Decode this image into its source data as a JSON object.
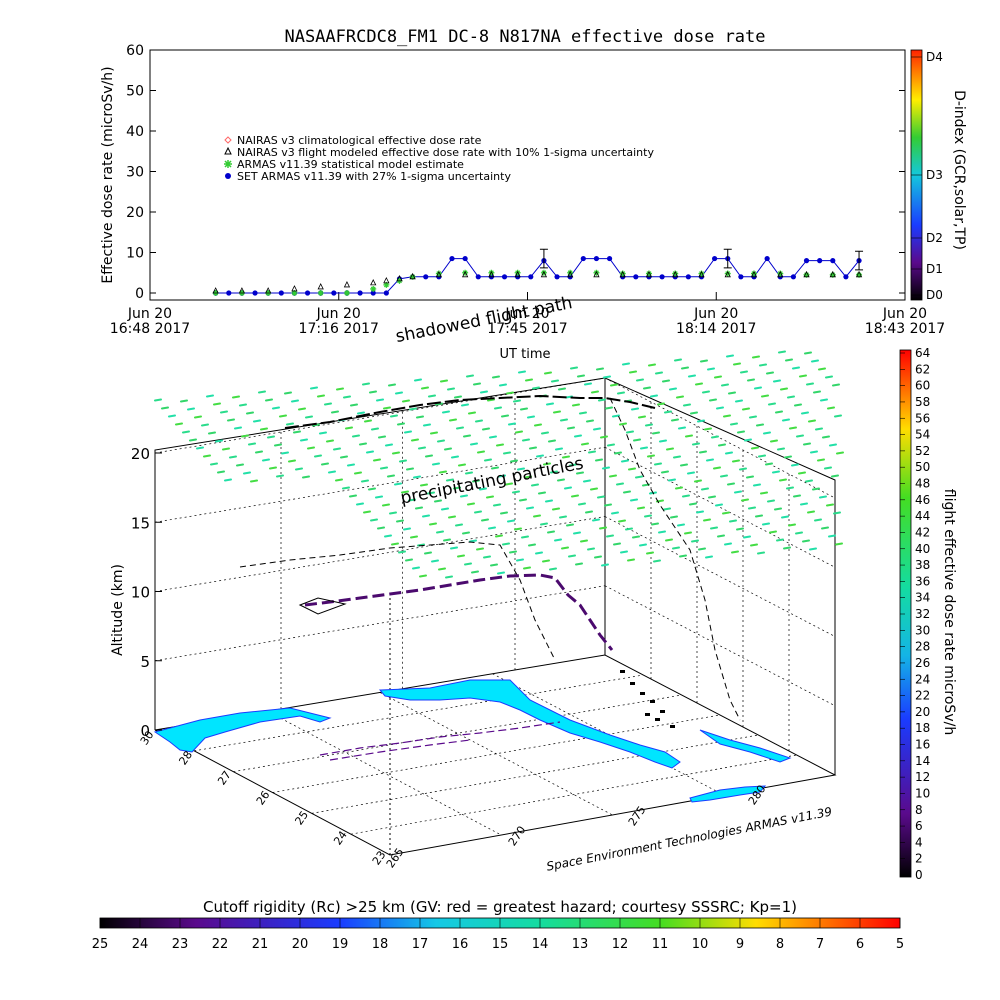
{
  "chart_data": [
    {
      "type": "line",
      "title": "NASAAFRCDC8_FM1 DC-8    N817NA effective dose rate",
      "xlabel": "UT time",
      "ylabel": "Effective dose rate (microSv/h)",
      "ylim": [
        0,
        60
      ],
      "yticks": [
        "0",
        "10",
        "20",
        "30",
        "40",
        "50",
        "60"
      ],
      "xticks": [
        {
          "l1": "Jun 20",
          "l2": "16:48 2017"
        },
        {
          "l1": "Jun 20",
          "l2": "17:16 2017"
        },
        {
          "l1": "Jun 20",
          "l2": "17:45 2017"
        },
        {
          "l1": "Jun 20",
          "l2": "18:14 2017"
        },
        {
          "l1": "Jun 20",
          "l2": "18:43 2017"
        }
      ],
      "x_range_minutes": [
        0,
        115
      ],
      "legend": [
        {
          "label": "NAIRAS v3 climatological effective dose rate",
          "color": "#ff6666"
        },
        {
          "label": "NAIRAS v3 flight modeled effective dose rate with 10% 1-sigma uncertainty",
          "color": "#000000"
        },
        {
          "label": "ARMAS v11.39 statistical model estimate",
          "color": "#33cc33"
        },
        {
          "label": "SET ARMAS v11.39 with 27% 1-sigma uncertainty",
          "color": "#0000cc"
        }
      ],
      "right_axis": {
        "label": "D-index (GCR,solar,TP)",
        "ticks": [
          "D0",
          "D1",
          "D2",
          "D3",
          "D4"
        ]
      },
      "annotations": [
        "shadowed flight path",
        "precipitating particles"
      ],
      "series": [
        {
          "name": "SET ARMAS v11.39 with 27% 1-sigma uncertainty",
          "x": [
            10,
            12,
            14,
            16,
            18,
            20,
            22,
            24,
            26,
            28,
            30,
            32,
            34,
            36,
            38,
            40,
            42,
            44,
            46,
            48,
            50,
            52,
            54,
            56,
            58,
            60,
            62,
            64,
            66,
            68,
            70,
            72,
            74,
            76,
            78,
            80,
            82,
            84,
            86,
            88,
            90,
            92,
            94,
            96,
            98,
            100,
            102,
            104,
            106,
            108
          ],
          "values": [
            0,
            0,
            0,
            0,
            0,
            0,
            0,
            0,
            0,
            0,
            0,
            0,
            0,
            0,
            3.5,
            4,
            4,
            4,
            8.5,
            8.5,
            4,
            4,
            4,
            4,
            4,
            8,
            4,
            4,
            8.5,
            8.5,
            8.5,
            4,
            4,
            4,
            4,
            4,
            4,
            4,
            8.5,
            8.5,
            4,
            4,
            8.5,
            4,
            4,
            8,
            8,
            8,
            4,
            8
          ]
        },
        {
          "name": "ARMAS v11.39 statistical model estimate",
          "x": [
            10,
            14,
            18,
            22,
            26,
            30,
            34,
            36,
            38,
            40,
            44,
            48,
            52,
            56,
            60,
            64,
            68,
            72,
            76,
            80,
            84,
            88,
            92,
            96,
            100,
            104,
            108
          ],
          "values": [
            0,
            0,
            0,
            0,
            0,
            0,
            1,
            2,
            3,
            4,
            4.8,
            5,
            5,
            5,
            5,
            5,
            5,
            4.8,
            4.8,
            4.8,
            4.8,
            4.8,
            4.8,
            4.8,
            4.5,
            4.5,
            4.5
          ]
        },
        {
          "name": "NAIRAS v3 flight modeled effective dose rate with 10% 1-sigma uncertainty",
          "x": [
            10,
            14,
            18,
            22,
            26,
            30,
            34,
            36,
            38,
            40,
            44,
            48,
            52,
            56,
            60,
            64,
            68,
            72,
            76,
            80,
            84,
            88,
            92,
            96,
            100,
            104,
            108
          ],
          "values": [
            0,
            0,
            0,
            0.5,
            1,
            1.5,
            2,
            2.5,
            3,
            3.5,
            4,
            4,
            4,
            4,
            4,
            4,
            4,
            4,
            4,
            4,
            4,
            4,
            4,
            4,
            4,
            4,
            4
          ]
        }
      ]
    },
    {
      "type": "scatter",
      "zlabel": "Altitude (km)",
      "zticks": [
        "0",
        "5",
        "10",
        "15",
        "20"
      ],
      "lat_ticks": [
        "30",
        "28",
        "27",
        "26",
        "25",
        "24",
        "23"
      ],
      "lon_ticks": [
        "265",
        "270",
        "275",
        "280"
      ],
      "credit": "Space Environment Technologies ARMAS v11.39",
      "colorbar_right": {
        "label": "flight effective dose rate microSv/h",
        "ticks": [
          "0",
          "2",
          "4",
          "6",
          "8",
          "10",
          "12",
          "14",
          "16",
          "18",
          "20",
          "22",
          "24",
          "26",
          "28",
          "30",
          "32",
          "34",
          "36",
          "38",
          "40",
          "42",
          "44",
          "46",
          "48",
          "50",
          "52",
          "54",
          "56",
          "58",
          "60",
          "62",
          "64"
        ]
      },
      "colorbar_bottom": {
        "label": "Cutoff rigidity (Rc) >25 km (GV: red = greatest hazard; courtesy SSSRC; Kp=1)",
        "ticks": [
          "25",
          "24",
          "23",
          "22",
          "21",
          "20",
          "19",
          "18",
          "17",
          "16",
          "15",
          "14",
          "13",
          "12",
          "11",
          "10",
          "9",
          "8",
          "7",
          "6",
          "5"
        ]
      }
    }
  ]
}
